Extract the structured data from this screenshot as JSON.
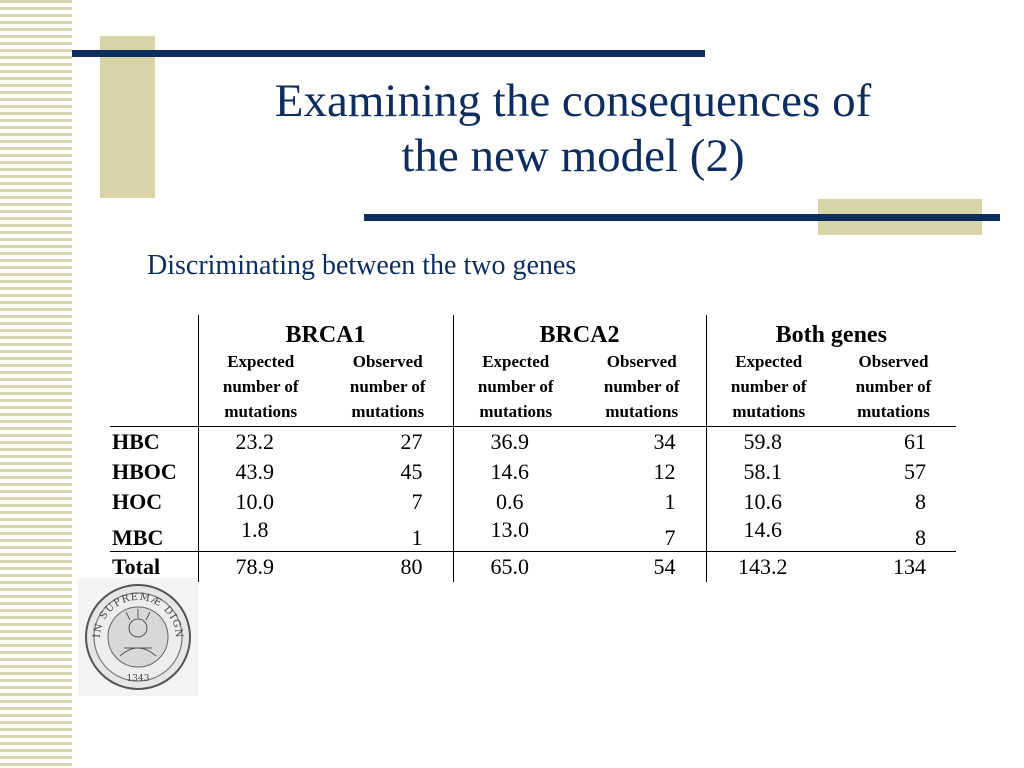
{
  "slide": {
    "title_line1": "Examining the consequences of",
    "title_line2": "the new model (2)",
    "subtitle": "Discriminating between the two genes"
  },
  "table": {
    "groups": [
      "BRCA1",
      "BRCA2",
      "Both genes"
    ],
    "subheaders": {
      "expected": [
        "Expected",
        "number of",
        "mutations"
      ],
      "observed": [
        "Observed",
        "number of",
        "mutations"
      ]
    },
    "rows": [
      {
        "label": "HBC",
        "values": [
          "23.2",
          "27",
          "36.9",
          "34",
          "59.8",
          "61"
        ]
      },
      {
        "label": "HBOC",
        "values": [
          "43.9",
          "45",
          "14.6",
          "12",
          "58.1",
          "57"
        ]
      },
      {
        "label": "HOC",
        "values": [
          "10.0",
          "7",
          "0.6",
          "1",
          "10.6",
          "8"
        ]
      },
      {
        "label": "MBC",
        "values": [
          "1.8",
          "1",
          "13.0",
          "7",
          "14.6",
          "8"
        ]
      },
      {
        "label": "Total",
        "values": [
          "78.9",
          "80",
          "65.0",
          "54",
          "143.2",
          "134"
        ]
      }
    ]
  },
  "seal": {
    "text": "IN SUPREMÆ DIGNITATIS",
    "year": "1343"
  }
}
